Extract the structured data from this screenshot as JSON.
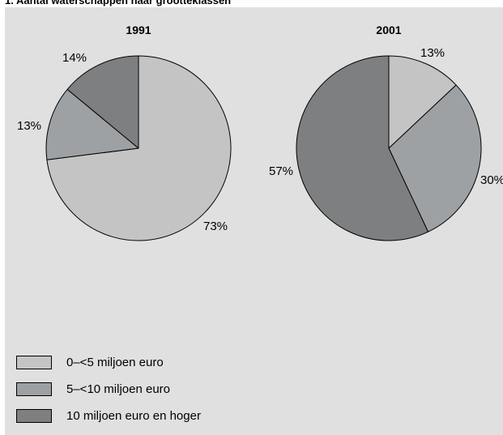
{
  "title": "1. Aantal waterschappen naar grootteklassen",
  "colors": {
    "panel_background": "#e0e0e0",
    "outline": "#000000"
  },
  "legend": [
    {
      "label": "0–<5 miljoen euro",
      "color": "#c4c4c4"
    },
    {
      "label": "5–<10 miljoen euro",
      "color": "#9ea1a3"
    },
    {
      "label": "10 miljoen euro en hoger",
      "color": "#7e7f80"
    }
  ],
  "chart_data": [
    {
      "type": "pie",
      "title": "1991",
      "categories": [
        "0–<5 miljoen euro",
        "5–<10 miljoen euro",
        "10 miljoen euro en hoger"
      ],
      "values": [
        73,
        13,
        14
      ],
      "labels": [
        "73%",
        "13%",
        "14%"
      ],
      "legend": "bottom-left"
    },
    {
      "type": "pie",
      "title": "2001",
      "categories": [
        "0–<5 miljoen euro",
        "5–<10 miljoen euro",
        "10 miljoen euro en hoger"
      ],
      "values": [
        13,
        30,
        57
      ],
      "labels": [
        "13%",
        "30%",
        "57%"
      ],
      "legend": "bottom-left"
    }
  ]
}
